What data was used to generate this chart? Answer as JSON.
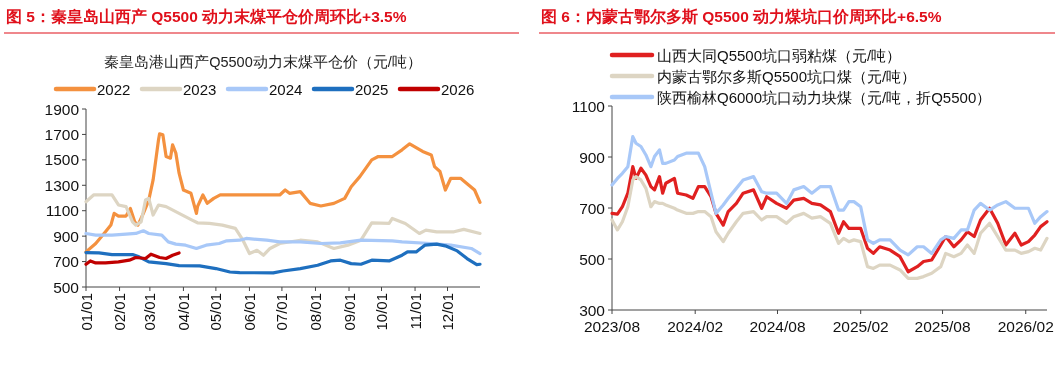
{
  "chart_data": [
    {
      "type": "line",
      "title": "图 5：秦皇岛山西产 Q5500 动力末煤平仓价周环比+3.5%",
      "subtitle": "秦皇岛港山西产Q5500动力末煤平仓价（元/吨）",
      "legend": "top",
      "xlim": [
        "--01-01",
        "--12-31"
      ],
      "xticks": [
        {
          "value": "--01-01",
          "label": "01/01"
        },
        {
          "value": "--02-01",
          "label": "02/01"
        },
        {
          "value": "--03-01",
          "label": "03/01"
        },
        {
          "value": "--04-01",
          "label": "04/01"
        },
        {
          "value": "--05-01",
          "label": "05/01"
        },
        {
          "value": "--06-01",
          "label": "06/01"
        },
        {
          "value": "--07-01",
          "label": "07/01"
        },
        {
          "value": "--08-01",
          "label": "08/01"
        },
        {
          "value": "--09-01",
          "label": "09/01"
        },
        {
          "value": "--10-01",
          "label": "10/01"
        },
        {
          "value": "--11-01",
          "label": "11/01"
        },
        {
          "value": "--12-01",
          "label": "12/01"
        }
      ],
      "ylim": [
        500,
        1900
      ],
      "yticks": [
        500,
        700,
        900,
        1100,
        1300,
        1500,
        1700,
        1900
      ],
      "series": [
        {
          "name": "2022",
          "color": "#f4913f",
          "x": [
            "--01-01",
            "--01-10",
            "--01-19",
            "--01-24",
            "--01-27",
            "--01-31",
            "--02-07",
            "--02-11",
            "--02-15",
            "--02-18",
            "--02-23",
            "--02-28",
            "--03-04",
            "--03-09",
            "--03-10",
            "--03-13",
            "--03-16",
            "--03-20",
            "--03-22",
            "--03-25",
            "--03-28",
            "--04-01",
            "--04-08",
            "--04-13",
            "--04-14",
            "--04-19",
            "--04-23",
            "--04-29",
            "--05-05",
            "--06-29",
            "--07-04",
            "--07-08",
            "--07-18",
            "--07-27",
            "--08-06",
            "--08-18",
            "--08-28",
            "--09-03",
            "--09-11",
            "--09-22",
            "--09-28",
            "--10-11",
            "--10-20",
            "--10-27",
            "--11-08",
            "--11-16",
            "--11-19",
            "--11-24",
            "--11-29",
            "--12-04",
            "--12-13",
            "--12-26",
            "--12-31"
          ],
          "values": [
            776,
            842,
            934,
            987,
            1079,
            1058,
            1058,
            1118,
            1013,
            987,
            1079,
            1184,
            1342,
            1658,
            1705,
            1697,
            1526,
            1513,
            1618,
            1553,
            1395,
            1263,
            1237,
            1079,
            1132,
            1224,
            1158,
            1197,
            1224,
            1224,
            1263,
            1237,
            1250,
            1158,
            1137,
            1158,
            1197,
            1289,
            1368,
            1500,
            1526,
            1526,
            1579,
            1626,
            1566,
            1539,
            1447,
            1408,
            1263,
            1355,
            1355,
            1263,
            1166
          ]
        },
        {
          "name": "2023",
          "color": "#ddd5c3",
          "x": [
            "--01-01",
            "--01-08",
            "--01-25",
            "--01-31",
            "--02-07",
            "--02-13",
            "--02-16",
            "--02-21",
            "--02-25",
            "--02-28",
            "--03-04",
            "--03-09",
            "--03-16",
            "--03-28",
            "--04-09",
            "--04-14",
            "--04-25",
            "--05-07",
            "--05-19",
            "--05-26",
            "--06-01",
            "--06-08",
            "--06-14",
            "--06-20",
            "--06-29",
            "--07-18",
            "--08-03",
            "--08-18",
            "--08-31",
            "--09-12",
            "--09-22",
            "--10-08",
            "--10-11",
            "--10-23",
            "--11-05",
            "--11-11",
            "--11-21",
            "--12-07",
            "--12-16",
            "--12-31"
          ],
          "values": [
            1171,
            1224,
            1224,
            1145,
            1132,
            1013,
            987,
            1013,
            1184,
            1197,
            1066,
            1145,
            1132,
            1079,
            1026,
            1005,
            1000,
            987,
            961,
            868,
            763,
            789,
            750,
            803,
            842,
            868,
            855,
            803,
            829,
            868,
            1005,
            1000,
            1039,
            1000,
            921,
            947,
            934,
            934,
            953,
            921
          ]
        },
        {
          "name": "2024",
          "color": "#a8c8f8",
          "x": [
            "--01-01",
            "--01-10",
            "--01-25",
            "--02-07",
            "--02-16",
            "--02-23",
            "--02-28",
            "--03-12",
            "--03-18",
            "--03-25",
            "--04-03",
            "--04-13",
            "--04-22",
            "--05-04",
            "--05-11",
            "--05-23",
            "--05-29",
            "--06-17",
            "--06-29",
            "--07-18",
            "--08-06",
            "--08-24",
            "--09-12",
            "--10-11",
            "--10-20",
            "--11-15",
            "--12-04",
            "--12-23",
            "--12-31"
          ],
          "values": [
            921,
            908,
            908,
            916,
            921,
            942,
            921,
            908,
            855,
            837,
            829,
            803,
            829,
            842,
            863,
            868,
            882,
            868,
            855,
            855,
            842,
            847,
            868,
            863,
            855,
            842,
            829,
            803,
            763
          ]
        },
        {
          "name": "2025",
          "color": "#1e6fbf",
          "x": [
            "--01-01",
            "--01-13",
            "--01-25",
            "--02-13",
            "--02-19",
            "--02-28",
            "--03-16",
            "--03-28",
            "--04-16",
            "--05-01",
            "--05-14",
            "--05-23",
            "--06-23",
            "--07-02",
            "--07-18",
            "--08-03",
            "--08-15",
            "--08-24",
            "--09-03",
            "--09-12",
            "--09-22",
            "--10-08",
            "--10-20",
            "--10-25",
            "--11-02",
            "--11-10",
            "--11-21",
            "--11-30",
            "--12-10",
            "--12-19",
            "--12-28",
            "--12-31"
          ],
          "values": [
            771,
            768,
            755,
            755,
            737,
            697,
            684,
            668,
            666,
            645,
            618,
            613,
            611,
            626,
            645,
            671,
            705,
            711,
            684,
            679,
            711,
            705,
            750,
            776,
            776,
            829,
            837,
            821,
            784,
            724,
            676,
            679
          ]
        },
        {
          "name": "2026",
          "color": "#c00000",
          "x": [
            "--01-01",
            "--01-05",
            "--01-10",
            "--01-19",
            "--01-31",
            "--02-10",
            "--02-16",
            "--02-25",
            "--03-02",
            "--03-10",
            "--03-16",
            "--03-22",
            "--03-28"
          ],
          "values": [
            679,
            705,
            689,
            689,
            697,
            711,
            732,
            724,
            758,
            732,
            724,
            750,
            768
          ]
        }
      ]
    },
    {
      "type": "line",
      "title": "图 6：内蒙古鄂尔多斯 Q5500 动力煤坑口价周环比+6.5%",
      "legend": "top left",
      "xlim": [
        "2023-08-01",
        "2026-03-20"
      ],
      "xticks": [
        {
          "value": "2023-08-01",
          "label": "2023/08"
        },
        {
          "value": "2024-02-01",
          "label": "2024/02"
        },
        {
          "value": "2024-08-01",
          "label": "2024/08"
        },
        {
          "value": "2025-02-01",
          "label": "2025/02"
        },
        {
          "value": "2025-08-01",
          "label": "2025/08"
        },
        {
          "value": "2026-02-01",
          "label": "2026/02"
        }
      ],
      "ylim": [
        300,
        1100
      ],
      "yticks": [
        300,
        500,
        700,
        900,
        1100
      ],
      "x": [
        "2023-08-01",
        "2023-08-13",
        "2023-08-24",
        "2023-09-05",
        "2023-09-16",
        "2023-09-23",
        "2023-10-04",
        "2023-10-15",
        "2023-10-26",
        "2023-11-03",
        "2023-11-14",
        "2023-11-21",
        "2023-11-28",
        "2023-12-17",
        "2023-12-24",
        "2024-01-12",
        "2024-01-27",
        "2024-02-08",
        "2024-02-22",
        "2024-03-07",
        "2024-03-18",
        "2024-04-03",
        "2024-04-14",
        "2024-05-02",
        "2024-05-17",
        "2024-06-09",
        "2024-06-27",
        "2024-07-08",
        "2024-07-30",
        "2024-08-21",
        "2024-09-06",
        "2024-09-28",
        "2024-10-16",
        "2024-11-04",
        "2024-11-26",
        "2024-12-14",
        "2024-12-25",
        "2025-01-06",
        "2025-01-17",
        "2025-02-01",
        "2025-02-16",
        "2025-03-01",
        "2025-03-15",
        "2025-04-07",
        "2025-04-29",
        "2025-05-17",
        "2025-06-06",
        "2025-06-20",
        "2025-07-08",
        "2025-07-28",
        "2025-08-08",
        "2025-08-26",
        "2025-09-11",
        "2025-09-25",
        "2025-10-10",
        "2025-10-24",
        "2025-11-13",
        "2025-12-01",
        "2025-12-19",
        "2026-01-08",
        "2026-01-22",
        "2026-02-07",
        "2026-02-21",
        "2026-03-06",
        "2026-03-20"
      ],
      "series": [
        {
          "name": "山西大同Q5500坑口弱粘煤（元/吨）",
          "color": "#e02020",
          "values": [
            679,
            676,
            705,
            758,
            862,
            816,
            856,
            829,
            784,
            771,
            823,
            758,
            797,
            816,
            758,
            751,
            738,
            784,
            784,
            744,
            679,
            633,
            686,
            718,
            758,
            771,
            699,
            744,
            718,
            699,
            731,
            738,
            718,
            712,
            686,
            601,
            646,
            620,
            620,
            620,
            542,
            522,
            548,
            535,
            509,
            450,
            470,
            490,
            496,
            555,
            588,
            548,
            575,
            607,
            588,
            653,
            699,
            640,
            555,
            601,
            555,
            568,
            594,
            627,
            646
          ]
        },
        {
          "name": "内蒙古鄂尔多斯Q5500坑口煤（元/吨）",
          "color": "#ddd5c3",
          "values": [
            653,
            614,
            646,
            705,
            810,
            823,
            810,
            777,
            705,
            725,
            718,
            718,
            712,
            699,
            692,
            679,
            679,
            686,
            686,
            666,
            607,
            568,
            601,
            646,
            679,
            686,
            653,
            666,
            666,
            640,
            666,
            679,
            660,
            666,
            640,
            561,
            581,
            568,
            575,
            568,
            470,
            463,
            476,
            476,
            457,
            424,
            424,
            431,
            444,
            470,
            522,
            509,
            522,
            555,
            522,
            601,
            640,
            588,
            535,
            535,
            522,
            529,
            542,
            535,
            581
          ]
        },
        {
          "name": "陕西榆林Q6000坑口动力块煤（元/吨，折Q5500）",
          "color": "#a8c8f8",
          "values": [
            790,
            816,
            836,
            862,
            980,
            954,
            941,
            908,
            862,
            902,
            928,
            875,
            875,
            888,
            902,
            915,
            915,
            915,
            862,
            758,
            679,
            712,
            738,
            777,
            810,
            823,
            764,
            758,
            758,
            718,
            771,
            784,
            758,
            784,
            784,
            692,
            692,
            725,
            725,
            705,
            575,
            561,
            575,
            575,
            535,
            516,
            548,
            548,
            522,
            575,
            588,
            581,
            614,
            614,
            692,
            718,
            692,
            712,
            725,
            699,
            699,
            699,
            640,
            666,
            686
          ]
        }
      ]
    }
  ]
}
